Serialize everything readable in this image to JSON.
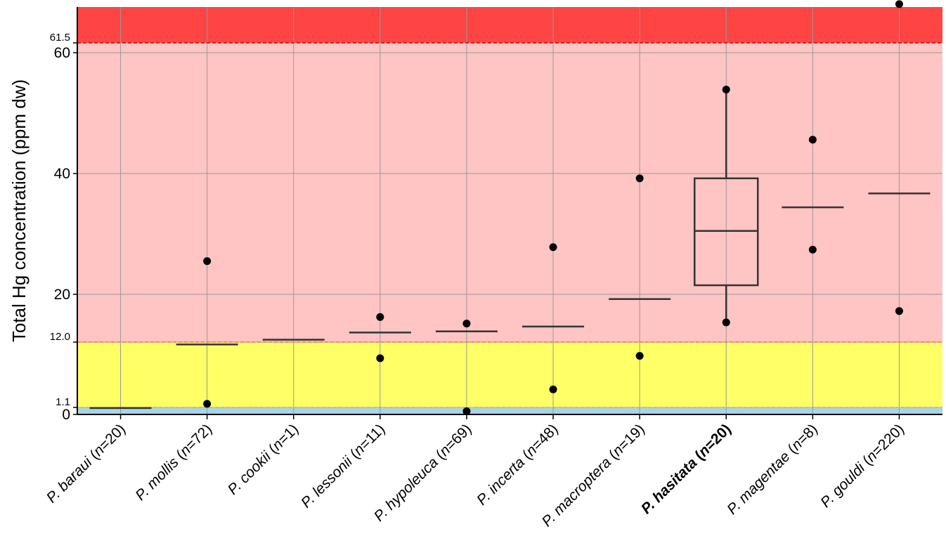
{
  "chart_data": {
    "type": "box",
    "ylabel": "Total Hg concentration (ppm dw)",
    "y_scale": "piecewise-linear",
    "y_breaks": [
      [
        0,
        0
      ],
      [
        1.1,
        1.1
      ],
      [
        12.0,
        12.0
      ],
      [
        20,
        20
      ],
      [
        40,
        40
      ],
      [
        60,
        60
      ],
      [
        61.5,
        61.5
      ],
      [
        64,
        64
      ]
    ],
    "yticks": [
      0,
      1.1,
      12.0,
      20,
      40,
      60,
      61.5
    ],
    "ytick_labels": [
      "0",
      "1.1",
      "12.0",
      "20",
      "40",
      "60",
      "61.5"
    ],
    "ylim": [
      0,
      64
    ],
    "grid": true,
    "bands": [
      {
        "from": 0,
        "to": 1.1,
        "color": "#a9d3ea"
      },
      {
        "from": 1.1,
        "to": 12.0,
        "color": "#ffff66"
      },
      {
        "from": 12.0,
        "to": 61.5,
        "color": "#ffc4c4"
      },
      {
        "from": 61.5,
        "to": 64,
        "color": "#ff4444"
      }
    ],
    "thresholds": [
      1.1,
      12.0,
      61.5
    ],
    "categories": [
      {
        "species": "P. baraui",
        "n_text": "n",
        "count_text": "=20)",
        "bold": false,
        "median": 1.0,
        "points": []
      },
      {
        "species": "P. mollis",
        "n_text": "n",
        "count_text": "=72)",
        "bold": false,
        "median": 11.6,
        "points": [
          25.5,
          1.7
        ]
      },
      {
        "species": "P. cookii",
        "n_text": "n",
        "count_text": "=1)",
        "bold": false,
        "median": 12.4,
        "points": []
      },
      {
        "species": "P. lessonii",
        "n_text": "n",
        "count_text": "=11)",
        "bold": false,
        "median": 13.6,
        "points": [
          16.2,
          9.3
        ]
      },
      {
        "species": "P. hypoleuca",
        "n_text": "n",
        "count_text": "=69)",
        "bold": false,
        "median": 13.8,
        "points": [
          15.1,
          0.5
        ]
      },
      {
        "species": "P. incerta",
        "n_text": "n",
        "count_text": "=48)",
        "bold": false,
        "median": 14.6,
        "points": [
          27.8,
          4.1
        ]
      },
      {
        "species": "P. macroptera",
        "n_text": "n",
        "count_text": "=19)",
        "bold": false,
        "median": 19.2,
        "points": [
          39.2,
          9.7
        ]
      },
      {
        "species": "P. hasitata",
        "n_text": "n",
        "count_text": "=20)",
        "bold": true,
        "median": 30.5,
        "q1": 21.5,
        "q3": 39.2,
        "whisker_low": 15.3,
        "whisker_high": 53.9,
        "points": [
          53.9,
          15.3
        ]
      },
      {
        "species": "P. magentae",
        "n_text": "n",
        "count_text": "=8)",
        "bold": false,
        "median": 34.4,
        "points": [
          45.6,
          27.4
        ]
      },
      {
        "species": "P. gouldi",
        "n_text": "n",
        "count_text": "=220)",
        "bold": false,
        "median": 36.7,
        "points": [
          64.2,
          17.2
        ]
      }
    ]
  }
}
